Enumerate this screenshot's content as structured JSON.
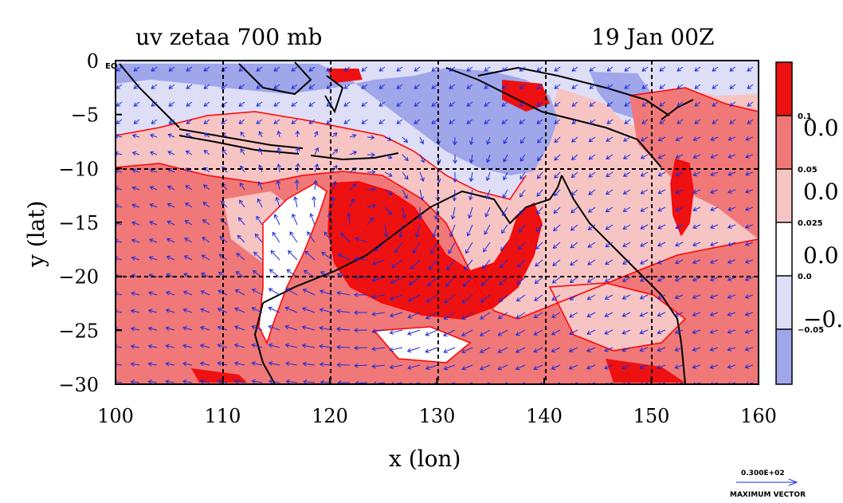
{
  "chart_data": {
    "type": "heatmap",
    "title_left": "uv zetaa 700 mb",
    "title_right": "19 Jan 00Z",
    "xlabel": "x (lon)",
    "ylabel": "y (lat)",
    "xlim": [
      100,
      160
    ],
    "ylim": [
      -30,
      0
    ],
    "x_ticks": [
      "100",
      "110",
      "120",
      "130",
      "140",
      "150",
      "160"
    ],
    "y_ticks": [
      "0",
      "−5",
      "−10",
      "−15",
      "−20",
      "−25",
      "−30"
    ],
    "x_tick_values": [
      100,
      110,
      120,
      130,
      140,
      150,
      160
    ],
    "y_tick_values": [
      0,
      -5,
      -10,
      -15,
      -20,
      -25,
      -30
    ],
    "corner_label": "EQ",
    "grid": true,
    "colorbar": {
      "levels_small": [
        "0.1",
        "0.05",
        "0.025",
        "0.0",
        "−0.05"
      ],
      "levels_big": [
        "0.0",
        "0.0",
        "0.0",
        "−0."
      ],
      "colors": [
        "#ee1111",
        "#f07878",
        "#f7c4c4",
        "#ffffff",
        "#dedff7",
        "#9fa6ea"
      ]
    },
    "vector_legend": {
      "value": "0.300E+02",
      "label": "MAXIMUM VECTOR"
    },
    "colors": {
      "strong_pos": "#ee1111",
      "mid_pos": "#f07878",
      "light_pos": "#f7c4c4",
      "neutral": "#ffffff",
      "light_neg": "#dedff7",
      "neg": "#9fa6ea",
      "contour": "#ff0000",
      "vector": "#1a2bdb",
      "coast": "#000000"
    }
  }
}
